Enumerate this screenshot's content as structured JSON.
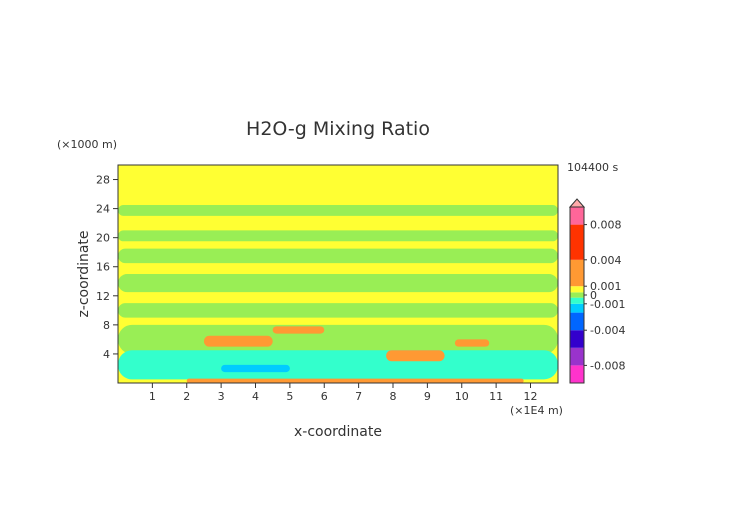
{
  "chart_data": {
    "type": "heatmap",
    "title": "H2O-g Mixing Ratio",
    "xlabel": "x-coordinate",
    "ylabel": "z-coordinate",
    "x_unit": "(×1E4 m)",
    "y_unit": "(×1000 m)",
    "timestamp": "104400 s",
    "xlim": [
      0,
      12.8
    ],
    "ylim": [
      0,
      30
    ],
    "x_ticks": [
      1,
      2,
      3,
      4,
      5,
      6,
      7,
      8,
      9,
      10,
      11,
      12
    ],
    "y_ticks": [
      4,
      8,
      12,
      16,
      20,
      24,
      28
    ],
    "colorbar": {
      "labels": [
        "0.008",
        "0.004",
        "0.001",
        "0",
        "-0.001",
        "-0.004",
        "-0.008"
      ],
      "label_values": [
        0.008,
        0.004,
        0.001,
        0,
        -0.001,
        -0.004,
        -0.008
      ],
      "range": [
        -0.01,
        0.01
      ],
      "colors": [
        {
          "value": -0.01,
          "color": "#ff33cc"
        },
        {
          "value": -0.008,
          "color": "#9933cc"
        },
        {
          "value": -0.006,
          "color": "#3300cc"
        },
        {
          "value": -0.004,
          "color": "#0066ff"
        },
        {
          "value": -0.002,
          "color": "#00ccff"
        },
        {
          "value": -0.001,
          "color": "#33ffcc"
        },
        {
          "value": -0.0003,
          "color": "#99ee55"
        },
        {
          "value": 0.0003,
          "color": "#ffff33"
        },
        {
          "value": 0.001,
          "color": "#ff9933"
        },
        {
          "value": 0.004,
          "color": "#ff3300"
        },
        {
          "value": 0.008,
          "color": "#ff6699"
        },
        {
          "value": 0.01,
          "color": "#ffaaaa"
        }
      ]
    },
    "regions": [
      {
        "label": "background upper",
        "color": "#ffff33",
        "x": [
          0,
          12.8
        ],
        "z": [
          0,
          30
        ]
      },
      {
        "label": "band 23-24",
        "color": "#99ee55",
        "x": [
          0,
          12.8
        ],
        "z": [
          23,
          24.5
        ]
      },
      {
        "label": "band 20",
        "color": "#99ee55",
        "x": [
          0,
          12.8
        ],
        "z": [
          19.5,
          21
        ]
      },
      {
        "label": "band 17-18",
        "color": "#99ee55",
        "x": [
          0,
          12.8
        ],
        "z": [
          16.5,
          18.5
        ]
      },
      {
        "label": "band 13-15",
        "color": "#99ee55",
        "x": [
          0,
          12.8
        ],
        "z": [
          12.5,
          15
        ]
      },
      {
        "label": "band 9-11",
        "color": "#99ee55",
        "x": [
          0,
          12.8
        ],
        "z": [
          9,
          11
        ]
      },
      {
        "label": "band 4-8",
        "color": "#99ee55",
        "x": [
          0,
          12.8
        ],
        "z": [
          4,
          8
        ]
      },
      {
        "label": "low band",
        "color": "#33ffcc",
        "x": [
          0,
          12.8
        ],
        "z": [
          0.5,
          4.5
        ]
      },
      {
        "label": "blue patch",
        "color": "#00ccff",
        "x": [
          3,
          5
        ],
        "z": [
          1.5,
          2.5
        ]
      },
      {
        "label": "orange patch 1",
        "color": "#ff9933",
        "x": [
          2.5,
          4.5
        ],
        "z": [
          5,
          6.5
        ]
      },
      {
        "label": "orange patch 2",
        "color": "#ff9933",
        "x": [
          4.5,
          6
        ],
        "z": [
          6.8,
          7.8
        ]
      },
      {
        "label": "orange patch 3",
        "color": "#ff9933",
        "x": [
          7.8,
          9.5
        ],
        "z": [
          3,
          4.5
        ]
      },
      {
        "label": "orange patch 4",
        "color": "#ff9933",
        "x": [
          9.8,
          10.8
        ],
        "z": [
          5,
          6
        ]
      },
      {
        "label": "orange surface",
        "color": "#ff9933",
        "x": [
          2,
          11.8
        ],
        "z": [
          0,
          0.6
        ]
      }
    ]
  }
}
